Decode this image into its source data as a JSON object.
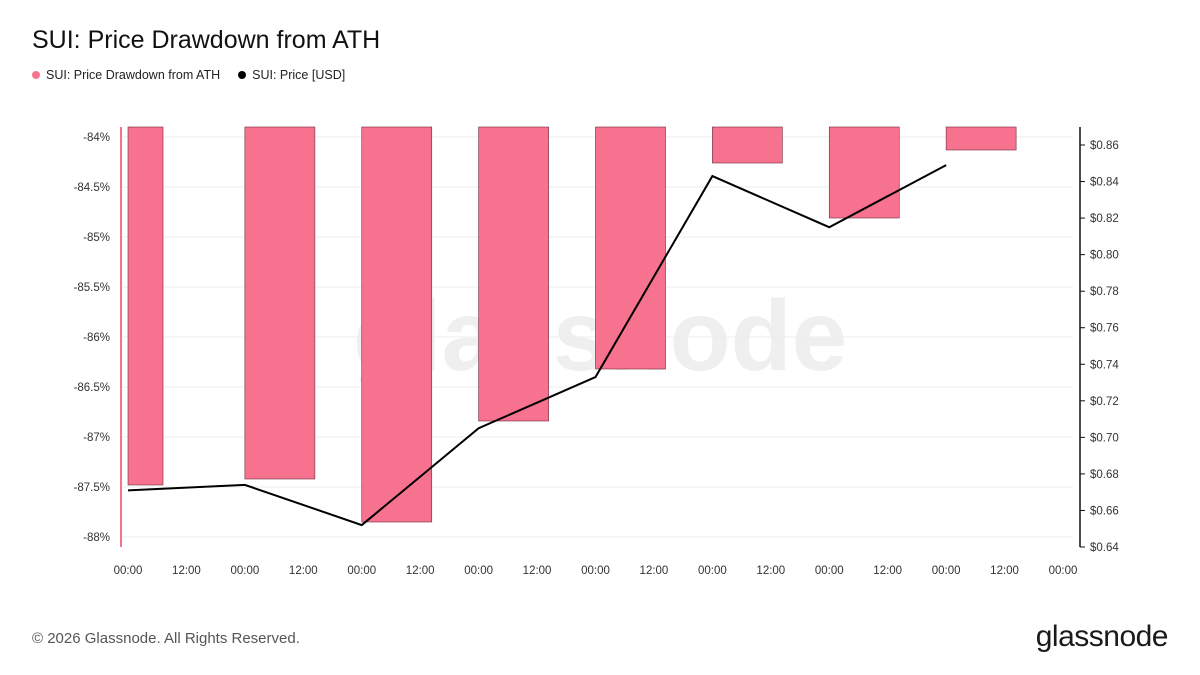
{
  "title": "SUI: Price Drawdown from ATH",
  "legend": [
    {
      "label": "SUI: Price Drawdown from ATH",
      "color": "#f7728f"
    },
    {
      "label": "SUI: Price [USD]",
      "color": "#000000"
    }
  ],
  "watermark": "glassnode",
  "footer": "© 2026 Glassnode. All Rights Reserved.",
  "brand": "glassnode",
  "chart_data": {
    "type": "bar",
    "x_ticks": [
      "00:00",
      "12:00",
      "00:00",
      "12:00",
      "00:00",
      "12:00",
      "00:00",
      "12:00",
      "00:00",
      "12:00",
      "00:00",
      "12:00",
      "00:00",
      "12:00",
      "00:00",
      "12:00",
      "00:00"
    ],
    "left_axis": {
      "ticks": [
        "-84%",
        "-84.5%",
        "-85%",
        "-85.5%",
        "-86%",
        "-86.5%",
        "-87%",
        "-87.5%",
        "-88%"
      ],
      "ylim": [
        -88,
        -84
      ]
    },
    "right_axis": {
      "ticks": [
        "$0.86",
        "$0.84",
        "$0.82",
        "$0.80",
        "$0.78",
        "$0.76",
        "$0.74",
        "$0.72",
        "$0.70",
        "$0.68",
        "$0.66",
        "$0.64"
      ],
      "ylim": [
        0.64,
        0.86
      ]
    },
    "series": [
      {
        "name": "SUI: Price Drawdown from ATH",
        "type": "bar",
        "axis": "left",
        "color": "#f7728f",
        "values": [
          -87.48,
          -87.42,
          -87.85,
          -86.84,
          -86.32,
          -84.26,
          -84.81,
          -84.13
        ]
      },
      {
        "name": "SUI: Price [USD]",
        "type": "line",
        "axis": "right",
        "color": "#000000",
        "values": [
          0.671,
          0.674,
          0.652,
          0.705,
          0.733,
          0.843,
          0.815,
          0.849
        ]
      }
    ],
    "grid": true
  }
}
